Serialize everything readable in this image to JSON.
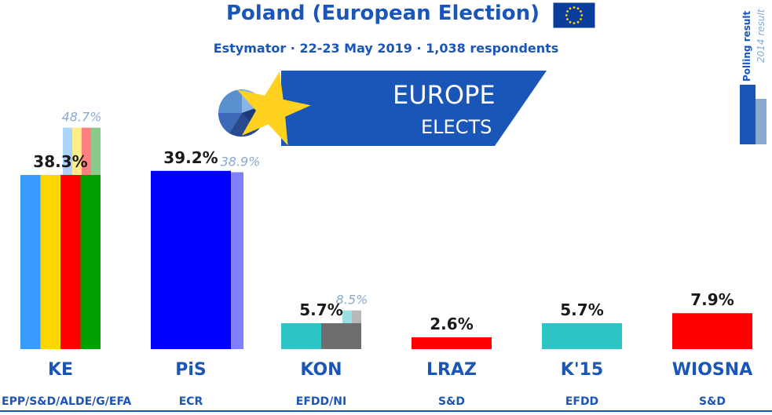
{
  "header": {
    "title": "Poland (European Election)",
    "subtitle": "Estymator · 22-23 May 2019 · 1,038 respondents"
  },
  "legend": {
    "current": "Polling result",
    "previous": "2014 result"
  },
  "logo": {
    "line1": "EUROPE",
    "line2": "ELECTS"
  },
  "colors": {
    "brand": "#1a56b8",
    "legend_current": "#1a56b8",
    "legend_previous": "#8aa8d0"
  },
  "chart_data": {
    "type": "bar",
    "title": "Poland (European Election)",
    "subtitle": "Estymator · 22-23 May 2019 · 1,038 respondents",
    "ylim": [
      0,
      50
    ],
    "grid": false,
    "legend_placement": "top-right",
    "series": [
      {
        "name": "Polling result",
        "values": [
          38.3,
          39.2,
          5.7,
          2.6,
          5.7,
          7.9
        ]
      },
      {
        "name": "2014 result",
        "values": [
          48.7,
          38.9,
          8.5,
          null,
          null,
          null
        ]
      }
    ],
    "categories": [
      "KE",
      "PiS",
      "KON",
      "LRAZ",
      "K'15",
      "WIOSNA"
    ],
    "parties": [
      {
        "name": "KE",
        "group": "EPP/S&D/ALDE/G/EFA",
        "value": 38.3,
        "value_label": "38.3%",
        "prev": 48.7,
        "prev_label": "48.7%",
        "colors": [
          "#3a9cff",
          "#ffd700",
          "#ff0000",
          "#00a000"
        ],
        "prev_colors": [
          "#a8d4ff",
          "#ffee88",
          "#ff8080",
          "#88cc88"
        ]
      },
      {
        "name": "PiS",
        "group": "ECR",
        "value": 39.2,
        "value_label": "39.2%",
        "prev": 38.9,
        "prev_label": "38.9%",
        "colors": [
          "#0000ff"
        ],
        "prev_colors": [
          "#8080ff"
        ]
      },
      {
        "name": "KON",
        "group": "EFDD/NI",
        "value": 5.7,
        "value_label": "5.7%",
        "prev": 8.5,
        "prev_label": "8.5%",
        "colors": [
          "#2ec4c4",
          "#6e6e6e"
        ],
        "prev_colors": [
          "#99e0e0",
          "#b8b8b8"
        ]
      },
      {
        "name": "LRAZ",
        "group": "S&D",
        "value": 2.6,
        "value_label": "2.6%",
        "prev": null,
        "prev_label": "",
        "colors": [
          "#ff0000"
        ],
        "prev_colors": []
      },
      {
        "name": "K'15",
        "group": "EFDD",
        "value": 5.7,
        "value_label": "5.7%",
        "prev": null,
        "prev_label": "",
        "colors": [
          "#2ec4c4"
        ],
        "prev_colors": []
      },
      {
        "name": "WIOSNA",
        "group": "S&D",
        "value": 7.9,
        "value_label": "7.9%",
        "prev": null,
        "prev_label": "",
        "colors": [
          "#ff0000"
        ],
        "prev_colors": []
      }
    ]
  }
}
